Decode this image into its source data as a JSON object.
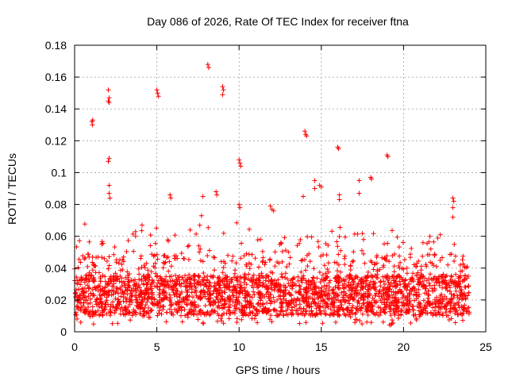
{
  "chart_data": {
    "type": "scatter",
    "title": "Day 086 of 2026, Rate Of TEC Index for receiver ftna",
    "xlabel": "GPS time / hours",
    "ylabel": "ROTI / TECUs",
    "xlim": [
      0,
      25
    ],
    "ylim": [
      0,
      0.18
    ],
    "x_ticks": [
      "0",
      "5",
      "10",
      "15",
      "20",
      "25"
    ],
    "y_ticks": [
      "0",
      "0.02",
      "0.04",
      "0.06",
      "0.08",
      "0.1",
      "0.12",
      "0.14",
      "0.16",
      "0.18"
    ],
    "grid": true,
    "marker": "+",
    "color": "#ff0000",
    "background": {
      "x_range": [
        0,
        24
      ],
      "baseline_range": [
        0.01,
        0.04
      ],
      "peak_envelope": [
        {
          "x": 0.2,
          "y": 0.08
        },
        {
          "x": 0.6,
          "y": 0.07
        },
        {
          "x": 1.5,
          "y": 0.06
        },
        {
          "x": 2.3,
          "y": 0.065
        },
        {
          "x": 4.6,
          "y": 0.07
        },
        {
          "x": 5.4,
          "y": 0.07
        },
        {
          "x": 6.3,
          "y": 0.06
        },
        {
          "x": 7.8,
          "y": 0.075
        },
        {
          "x": 8.5,
          "y": 0.065
        },
        {
          "x": 9.6,
          "y": 0.07
        },
        {
          "x": 11.5,
          "y": 0.06
        },
        {
          "x": 13.5,
          "y": 0.06
        },
        {
          "x": 14.9,
          "y": 0.06
        },
        {
          "x": 16.0,
          "y": 0.07
        },
        {
          "x": 17.2,
          "y": 0.065
        },
        {
          "x": 18.2,
          "y": 0.07
        },
        {
          "x": 19.1,
          "y": 0.065
        },
        {
          "x": 21.0,
          "y": 0.055
        },
        {
          "x": 22.8,
          "y": 0.07
        },
        {
          "x": 23.8,
          "y": 0.045
        }
      ]
    },
    "series": [
      {
        "name": "ROTI",
        "points": [
          {
            "x": 1.05,
            "y": 0.132
          },
          {
            "x": 1.08,
            "y": 0.13
          },
          {
            "x": 1.1,
            "y": 0.133
          },
          {
            "x": 2.05,
            "y": 0.152
          },
          {
            "x": 2.1,
            "y": 0.147
          },
          {
            "x": 2.05,
            "y": 0.145
          },
          {
            "x": 2.1,
            "y": 0.144
          },
          {
            "x": 2.1,
            "y": 0.109
          },
          {
            "x": 2.05,
            "y": 0.107
          },
          {
            "x": 2.1,
            "y": 0.092
          },
          {
            "x": 2.1,
            "y": 0.087
          },
          {
            "x": 2.15,
            "y": 0.084
          },
          {
            "x": 5.0,
            "y": 0.152
          },
          {
            "x": 5.05,
            "y": 0.15
          },
          {
            "x": 5.1,
            "y": 0.148
          },
          {
            "x": 5.8,
            "y": 0.086
          },
          {
            "x": 5.85,
            "y": 0.084
          },
          {
            "x": 7.8,
            "y": 0.085
          },
          {
            "x": 8.1,
            "y": 0.168
          },
          {
            "x": 8.15,
            "y": 0.166
          },
          {
            "x": 8.6,
            "y": 0.088
          },
          {
            "x": 8.65,
            "y": 0.086
          },
          {
            "x": 9.0,
            "y": 0.154
          },
          {
            "x": 9.05,
            "y": 0.152
          },
          {
            "x": 9.0,
            "y": 0.149
          },
          {
            "x": 10.0,
            "y": 0.108
          },
          {
            "x": 10.05,
            "y": 0.106
          },
          {
            "x": 10.1,
            "y": 0.104
          },
          {
            "x": 10.0,
            "y": 0.08
          },
          {
            "x": 10.05,
            "y": 0.078
          },
          {
            "x": 11.9,
            "y": 0.079
          },
          {
            "x": 12.0,
            "y": 0.077
          },
          {
            "x": 12.1,
            "y": 0.076
          },
          {
            "x": 13.9,
            "y": 0.085
          },
          {
            "x": 14.0,
            "y": 0.126
          },
          {
            "x": 14.05,
            "y": 0.124
          },
          {
            "x": 14.1,
            "y": 0.123
          },
          {
            "x": 14.6,
            "y": 0.095
          },
          {
            "x": 14.6,
            "y": 0.09
          },
          {
            "x": 14.9,
            "y": 0.092
          },
          {
            "x": 15.0,
            "y": 0.091
          },
          {
            "x": 16.0,
            "y": 0.116
          },
          {
            "x": 16.05,
            "y": 0.115
          },
          {
            "x": 16.1,
            "y": 0.086
          },
          {
            "x": 16.1,
            "y": 0.083
          },
          {
            "x": 17.3,
            "y": 0.095
          },
          {
            "x": 17.3,
            "y": 0.087
          },
          {
            "x": 18.0,
            "y": 0.097
          },
          {
            "x": 18.05,
            "y": 0.096
          },
          {
            "x": 19.0,
            "y": 0.111
          },
          {
            "x": 19.05,
            "y": 0.11
          },
          {
            "x": 23.0,
            "y": 0.084
          },
          {
            "x": 23.05,
            "y": 0.082
          },
          {
            "x": 23.0,
            "y": 0.078
          },
          {
            "x": 23.0,
            "y": 0.072
          }
        ]
      }
    ]
  }
}
